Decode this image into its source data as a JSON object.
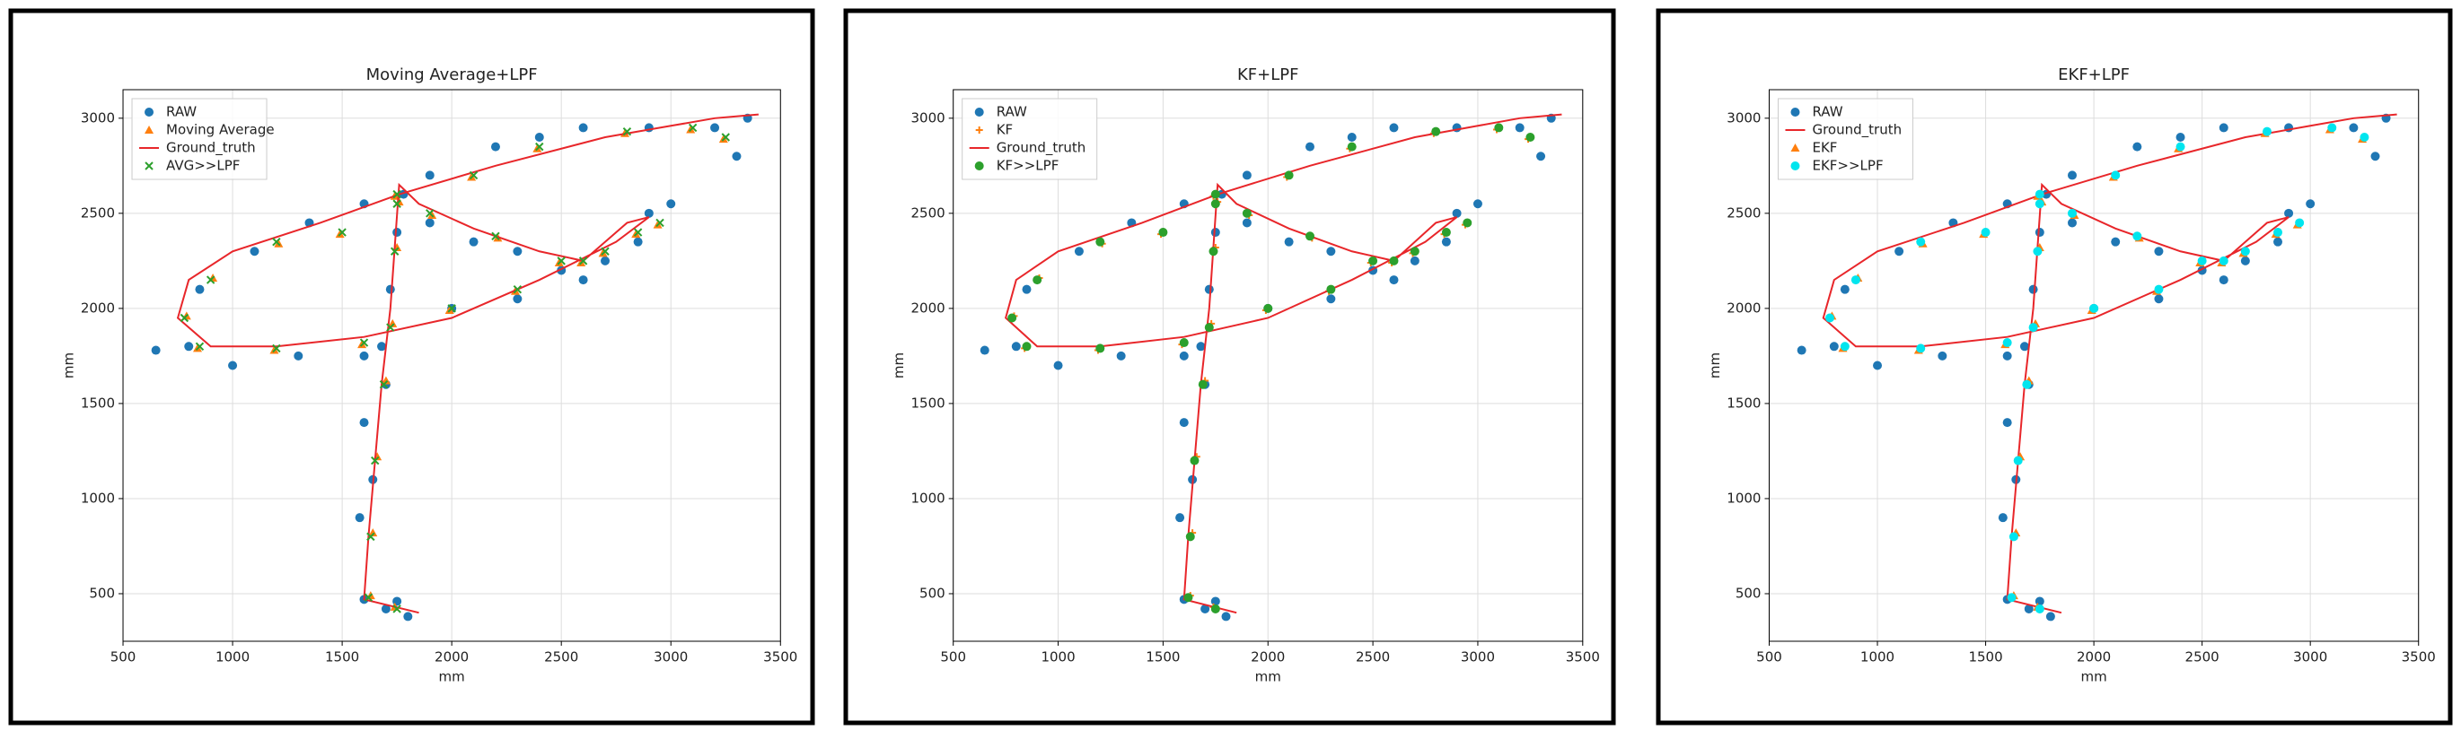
{
  "chart_data": [
    {
      "type": "scatter",
      "title": "Moving Average+LPF",
      "x_label": "mm",
      "y_label": "mm",
      "xlim": [
        500,
        3500
      ],
      "ylim": [
        250,
        3150
      ],
      "xticks": [
        500,
        1000,
        1500,
        2000,
        2500,
        3000,
        3500
      ],
      "yticks": [
        500,
        1000,
        1500,
        2000,
        2500,
        3000
      ],
      "grid": true,
      "legend": "upper left",
      "series": [
        {
          "name": "RAW",
          "color": "#1f77b4",
          "style": "o",
          "x": [
            1800,
            1700,
            1600,
            1750,
            1580,
            1640,
            1600,
            1700,
            1680,
            1720,
            1750,
            1780,
            1900,
            2100,
            2300,
            2500,
            2700,
            2900,
            3000,
            2850,
            2600,
            2300,
            2000,
            1600,
            1300,
            1000,
            800,
            650,
            850,
            1100,
            1350,
            1600,
            1900,
            2200,
            2400,
            2600,
            2900,
            3200,
            3300,
            3350
          ],
          "values": [
            380,
            420,
            470,
            460,
            900,
            1100,
            1400,
            1600,
            1800,
            2100,
            2400,
            2600,
            2450,
            2350,
            2300,
            2200,
            2250,
            2500,
            2550,
            2350,
            2150,
            2050,
            2000,
            1750,
            1750,
            1700,
            1800,
            1780,
            2100,
            2300,
            2450,
            2550,
            2700,
            2850,
            2900,
            2950,
            2950,
            2950,
            2800,
            3000
          ]
        },
        {
          "name": "Moving Average",
          "color": "#ff7f0e",
          "style": "^",
          "x": [
            1740,
            1630,
            1640,
            1660,
            1700,
            1730,
            1750,
            1760,
            1910,
            2210,
            2490,
            2690,
            2940,
            2840,
            2590,
            2290,
            1990,
            1590,
            1190,
            840,
            790,
            910,
            1210,
            1490,
            1740,
            2090,
            2390,
            2790,
            3090,
            3240
          ],
          "values": [
            430,
            490,
            820,
            1220,
            1620,
            1920,
            2320,
            2560,
            2490,
            2370,
            2240,
            2290,
            2440,
            2390,
            2240,
            2090,
            1990,
            1810,
            1780,
            1790,
            1960,
            2160,
            2340,
            2390,
            2590,
            2690,
            2840,
            2920,
            2940,
            2890
          ]
        },
        {
          "name": "Ground_truth",
          "color": "#e8262a",
          "style": "line",
          "x": [
            1850,
            1600,
            1620,
            1650,
            1680,
            1720,
            1760,
            1850,
            2100,
            2400,
            2600,
            2800,
            2900,
            2750,
            2400,
            2000,
            1600,
            1200,
            900,
            750,
            800,
            1000,
            1400,
            1760,
            2200,
            2700,
            3000,
            3200,
            3400
          ],
          "values": [
            400,
            470,
            800,
            1200,
            1600,
            2000,
            2650,
            2550,
            2420,
            2300,
            2250,
            2450,
            2480,
            2350,
            2150,
            1950,
            1850,
            1800,
            1800,
            1950,
            2150,
            2300,
            2450,
            2600,
            2750,
            2900,
            2960,
            3000,
            3020
          ]
        },
        {
          "name": "AVG>>LPF",
          "color": "#2ca02c",
          "style": "x",
          "x": [
            1750,
            1620,
            1630,
            1650,
            1690,
            1720,
            1740,
            1750,
            1900,
            2200,
            2500,
            2700,
            2950,
            2850,
            2600,
            2300,
            2000,
            1600,
            1200,
            850,
            780,
            900,
            1200,
            1500,
            1750,
            2100,
            2400,
            2800,
            3100,
            3250
          ],
          "values": [
            420,
            480,
            800,
            1200,
            1600,
            1900,
            2300,
            2550,
            2500,
            2380,
            2250,
            2300,
            2450,
            2400,
            2250,
            2100,
            2000,
            1820,
            1790,
            1800,
            1950,
            2150,
            2350,
            2400,
            2600,
            2700,
            2850,
            2930,
            2950,
            2900
          ]
        }
      ]
    },
    {
      "type": "scatter",
      "title": "KF+LPF",
      "x_label": "mm",
      "y_label": "mm",
      "xlim": [
        500,
        3500
      ],
      "ylim": [
        250,
        3150
      ],
      "xticks": [
        500,
        1000,
        1500,
        2000,
        2500,
        3000,
        3500
      ],
      "yticks": [
        500,
        1000,
        1500,
        2000,
        2500,
        3000
      ],
      "grid": true,
      "legend": "upper left",
      "series": [
        {
          "name": "RAW",
          "color": "#1f77b4",
          "style": "o",
          "x": [
            1800,
            1700,
            1600,
            1750,
            1580,
            1640,
            1600,
            1700,
            1680,
            1720,
            1750,
            1780,
            1900,
            2100,
            2300,
            2500,
            2700,
            2900,
            3000,
            2850,
            2600,
            2300,
            2000,
            1600,
            1300,
            1000,
            800,
            650,
            850,
            1100,
            1350,
            1600,
            1900,
            2200,
            2400,
            2600,
            2900,
            3200,
            3300,
            3350
          ],
          "values": [
            380,
            420,
            470,
            460,
            900,
            1100,
            1400,
            1600,
            1800,
            2100,
            2400,
            2600,
            2450,
            2350,
            2300,
            2200,
            2250,
            2500,
            2550,
            2350,
            2150,
            2050,
            2000,
            1750,
            1750,
            1700,
            1800,
            1780,
            2100,
            2300,
            2450,
            2550,
            2700,
            2850,
            2900,
            2950,
            2950,
            2950,
            2800,
            3000
          ]
        },
        {
          "name": "KF",
          "color": "#ff7f0e",
          "style": "+",
          "x": [
            1740,
            1630,
            1640,
            1660,
            1700,
            1730,
            1750,
            1760,
            1910,
            2210,
            2490,
            2690,
            2940,
            2840,
            2590,
            2290,
            1990,
            1590,
            1190,
            840,
            790,
            910,
            1210,
            1490,
            1740,
            2090,
            2390,
            2790,
            3090,
            3240
          ],
          "values": [
            430,
            490,
            820,
            1220,
            1620,
            1920,
            2320,
            2560,
            2490,
            2370,
            2240,
            2290,
            2440,
            2390,
            2240,
            2090,
            1990,
            1810,
            1780,
            1790,
            1960,
            2160,
            2340,
            2390,
            2590,
            2690,
            2840,
            2920,
            2940,
            2890
          ]
        },
        {
          "name": "Ground_truth",
          "color": "#e8262a",
          "style": "line",
          "x": [
            1850,
            1600,
            1620,
            1650,
            1680,
            1720,
            1760,
            1850,
            2100,
            2400,
            2600,
            2800,
            2900,
            2750,
            2400,
            2000,
            1600,
            1200,
            900,
            750,
            800,
            1000,
            1400,
            1760,
            2200,
            2700,
            3000,
            3200,
            3400
          ],
          "values": [
            400,
            470,
            800,
            1200,
            1600,
            2000,
            2650,
            2550,
            2420,
            2300,
            2250,
            2450,
            2480,
            2350,
            2150,
            1950,
            1850,
            1800,
            1800,
            1950,
            2150,
            2300,
            2450,
            2600,
            2750,
            2900,
            2960,
            3000,
            3020
          ]
        },
        {
          "name": "KF>>LPF",
          "color": "#2ca02c",
          "style": "o",
          "x": [
            1750,
            1620,
            1630,
            1650,
            1690,
            1720,
            1740,
            1750,
            1900,
            2200,
            2500,
            2700,
            2950,
            2850,
            2600,
            2300,
            2000,
            1600,
            1200,
            850,
            780,
            900,
            1200,
            1500,
            1750,
            2100,
            2400,
            2800,
            3100,
            3250
          ],
          "values": [
            420,
            480,
            800,
            1200,
            1600,
            1900,
            2300,
            2550,
            2500,
            2380,
            2250,
            2300,
            2450,
            2400,
            2250,
            2100,
            2000,
            1820,
            1790,
            1800,
            1950,
            2150,
            2350,
            2400,
            2600,
            2700,
            2850,
            2930,
            2950,
            2900
          ]
        }
      ]
    },
    {
      "type": "scatter",
      "title": "EKF+LPF",
      "x_label": "mm",
      "y_label": "mm",
      "xlim": [
        500,
        3500
      ],
      "ylim": [
        250,
        3150
      ],
      "xticks": [
        500,
        1000,
        1500,
        2000,
        2500,
        3000,
        3500
      ],
      "yticks": [
        500,
        1000,
        1500,
        2000,
        2500,
        3000
      ],
      "grid": true,
      "legend": "upper left",
      "series": [
        {
          "name": "RAW",
          "color": "#1f77b4",
          "style": "o",
          "x": [
            1800,
            1700,
            1600,
            1750,
            1580,
            1640,
            1600,
            1700,
            1680,
            1720,
            1750,
            1780,
            1900,
            2100,
            2300,
            2500,
            2700,
            2900,
            3000,
            2850,
            2600,
            2300,
            2000,
            1600,
            1300,
            1000,
            800,
            650,
            850,
            1100,
            1350,
            1600,
            1900,
            2200,
            2400,
            2600,
            2900,
            3200,
            3300,
            3350
          ],
          "values": [
            380,
            420,
            470,
            460,
            900,
            1100,
            1400,
            1600,
            1800,
            2100,
            2400,
            2600,
            2450,
            2350,
            2300,
            2200,
            2250,
            2500,
            2550,
            2350,
            2150,
            2050,
            2000,
            1750,
            1750,
            1700,
            1800,
            1780,
            2100,
            2300,
            2450,
            2550,
            2700,
            2850,
            2900,
            2950,
            2950,
            2950,
            2800,
            3000
          ]
        },
        {
          "name": "Ground_truth",
          "color": "#e8262a",
          "style": "line",
          "x": [
            1850,
            1600,
            1620,
            1650,
            1680,
            1720,
            1760,
            1850,
            2100,
            2400,
            2600,
            2800,
            2900,
            2750,
            2400,
            2000,
            1600,
            1200,
            900,
            750,
            800,
            1000,
            1400,
            1760,
            2200,
            2700,
            3000,
            3200,
            3400
          ],
          "values": [
            400,
            470,
            800,
            1200,
            1600,
            2000,
            2650,
            2550,
            2420,
            2300,
            2250,
            2450,
            2480,
            2350,
            2150,
            1950,
            1850,
            1800,
            1800,
            1950,
            2150,
            2300,
            2450,
            2600,
            2750,
            2900,
            2960,
            3000,
            3020
          ]
        },
        {
          "name": "EKF",
          "color": "#ff7f0e",
          "style": "^",
          "x": [
            1740,
            1630,
            1640,
            1660,
            1700,
            1730,
            1750,
            1760,
            1910,
            2210,
            2490,
            2690,
            2940,
            2840,
            2590,
            2290,
            1990,
            1590,
            1190,
            840,
            790,
            910,
            1210,
            1490,
            1740,
            2090,
            2390,
            2790,
            3090,
            3240
          ],
          "values": [
            430,
            490,
            820,
            1220,
            1620,
            1920,
            2320,
            2560,
            2490,
            2370,
            2240,
            2290,
            2440,
            2390,
            2240,
            2090,
            1990,
            1810,
            1780,
            1790,
            1960,
            2160,
            2340,
            2390,
            2590,
            2690,
            2840,
            2920,
            2940,
            2890
          ]
        },
        {
          "name": "EKF>>LPF",
          "color": "#00e5ee",
          "style": "o",
          "x": [
            1750,
            1620,
            1630,
            1650,
            1690,
            1720,
            1740,
            1750,
            1900,
            2200,
            2500,
            2700,
            2950,
            2850,
            2600,
            2300,
            2000,
            1600,
            1200,
            850,
            780,
            900,
            1200,
            1500,
            1750,
            2100,
            2400,
            2800,
            3100,
            3250
          ],
          "values": [
            420,
            480,
            800,
            1200,
            1600,
            1900,
            2300,
            2550,
            2500,
            2380,
            2250,
            2300,
            2450,
            2400,
            2250,
            2100,
            2000,
            1820,
            1790,
            1800,
            1950,
            2150,
            2350,
            2400,
            2600,
            2700,
            2850,
            2930,
            2950,
            2900
          ]
        }
      ]
    }
  ]
}
